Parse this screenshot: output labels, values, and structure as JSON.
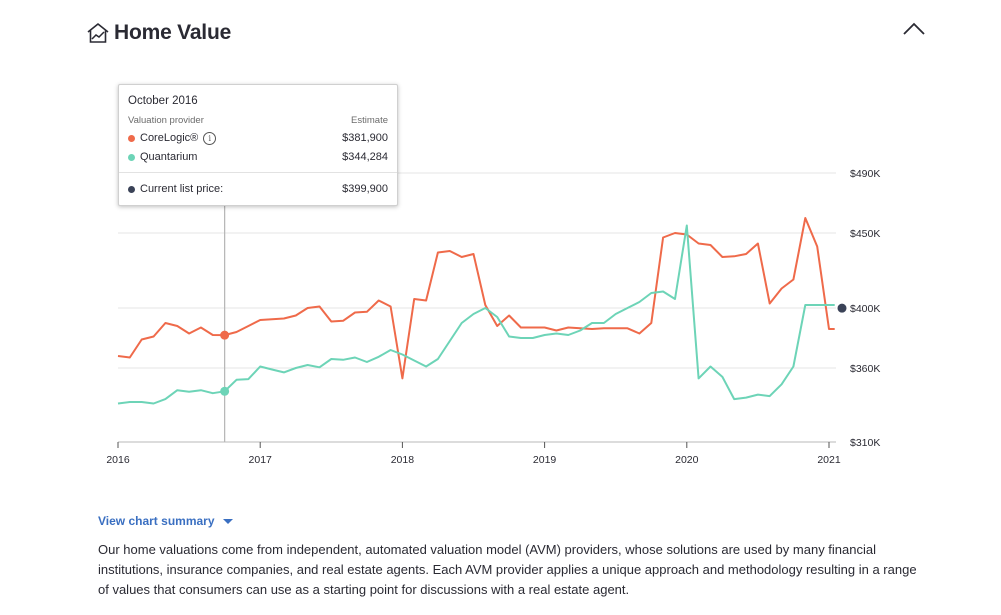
{
  "header": {
    "title": "Home Value",
    "icon": "home-chart-icon",
    "collapse_icon": "chevron-up-icon"
  },
  "tooltip": {
    "date": "October 2016",
    "col_provider": "Valuation provider",
    "col_estimate": "Estimate",
    "rows": [
      {
        "name": "CoreLogic®",
        "value": "$381,900",
        "color": "#ef6a4a"
      },
      {
        "name": "Quantarium",
        "value": "$344,284",
        "color": "#6dd4b7"
      }
    ],
    "list_price": {
      "name": "Current list price:",
      "value": "$399,900",
      "color": "#3a4257"
    }
  },
  "chart_data": {
    "type": "line",
    "x_ticks": [
      "2016",
      "2017",
      "2018",
      "2019",
      "2020",
      "2021"
    ],
    "y_ticks": [
      "$310K",
      "$360K",
      "$400K",
      "$450K",
      "$490K"
    ],
    "y_tick_values": [
      310000,
      360000,
      400000,
      450000,
      490000
    ],
    "ylim": [
      310000,
      490000
    ],
    "x_range": [
      2016.0,
      2021.0
    ],
    "grid": true,
    "legend": "none",
    "hover_x": 2016.75,
    "current_list_price": {
      "value": 399900,
      "color": "#3a4257"
    },
    "series": [
      {
        "name": "CoreLogic®",
        "color": "#ef6a4a",
        "x": [
          2016.0,
          2016.083,
          2016.167,
          2016.25,
          2016.333,
          2016.417,
          2016.5,
          2016.583,
          2016.667,
          2016.75,
          2016.833,
          2016.917,
          2017.0,
          2017.083,
          2017.167,
          2017.25,
          2017.333,
          2017.417,
          2017.5,
          2017.583,
          2017.667,
          2017.75,
          2017.833,
          2017.917,
          2018.0,
          2018.083,
          2018.167,
          2018.25,
          2018.333,
          2018.417,
          2018.5,
          2018.583,
          2018.667,
          2018.75,
          2018.833,
          2018.917,
          2019.0,
          2019.083,
          2019.167,
          2019.25,
          2019.333,
          2019.417,
          2019.5,
          2019.583,
          2019.667,
          2019.75,
          2019.833,
          2019.917,
          2020.0,
          2020.083,
          2020.167,
          2020.25,
          2020.333,
          2020.417,
          2020.5,
          2020.583,
          2020.667,
          2020.75,
          2020.833,
          2020.917,
          2021.0,
          2021.04
        ],
        "y": [
          368000,
          367000,
          379000,
          381000,
          390000,
          388000,
          383000,
          387000,
          382000,
          381900,
          384000,
          388000,
          392000,
          392500,
          393000,
          395000,
          400000,
          401000,
          391000,
          391500,
          397000,
          397500,
          405000,
          401000,
          353000,
          406000,
          405000,
          437000,
          438000,
          434000,
          436000,
          402000,
          388000,
          395000,
          387000,
          387000,
          387000,
          385000,
          387000,
          386500,
          386000,
          386500,
          386500,
          386500,
          383000,
          390000,
          447000,
          450000,
          449000,
          443000,
          442000,
          434000,
          434500,
          436000,
          443000,
          403000,
          413000,
          419000,
          460000,
          441000,
          386000,
          386000
        ]
      },
      {
        "name": "Quantarium",
        "color": "#6dd4b7",
        "x": [
          2016.0,
          2016.083,
          2016.167,
          2016.25,
          2016.333,
          2016.417,
          2016.5,
          2016.583,
          2016.667,
          2016.75,
          2016.833,
          2016.917,
          2017.0,
          2017.083,
          2017.167,
          2017.25,
          2017.333,
          2017.417,
          2017.5,
          2017.583,
          2017.667,
          2017.75,
          2017.833,
          2017.917,
          2018.0,
          2018.083,
          2018.167,
          2018.25,
          2018.333,
          2018.417,
          2018.5,
          2018.583,
          2018.667,
          2018.75,
          2018.833,
          2018.917,
          2019.0,
          2019.083,
          2019.167,
          2019.25,
          2019.333,
          2019.417,
          2019.5,
          2019.583,
          2019.667,
          2019.75,
          2019.833,
          2019.917,
          2020.0,
          2020.083,
          2020.167,
          2020.25,
          2020.333,
          2020.417,
          2020.5,
          2020.583,
          2020.667,
          2020.75,
          2020.833,
          2020.917,
          2021.0,
          2021.04
        ],
        "y": [
          336000,
          337000,
          337000,
          336000,
          339000,
          345000,
          344000,
          345000,
          343000,
          344284,
          352000,
          352500,
          361000,
          359000,
          357000,
          360000,
          362000,
          360500,
          366000,
          365500,
          367000,
          364000,
          367500,
          372000,
          369000,
          365000,
          361000,
          366000,
          378000,
          390000,
          396000,
          400000,
          394000,
          381000,
          380000,
          380000,
          382000,
          383000,
          382000,
          385000,
          390000,
          390000,
          396000,
          400000,
          404000,
          410000,
          411000,
          406000,
          455000,
          353000,
          361000,
          354000,
          339000,
          340000,
          342000,
          341000,
          349000,
          361000,
          402000,
          402000,
          402000,
          402000
        ]
      }
    ]
  },
  "summary_link": "View chart summary",
  "description": "Our home valuations come from independent, automated valuation model (AVM) providers, whose solutions are used by many financial institutions, insurance companies, and real estate agents. Each AVM provider applies a unique approach and methodology resulting in a range of values that consumers can use as a starting point for discussions with a real estate agent."
}
